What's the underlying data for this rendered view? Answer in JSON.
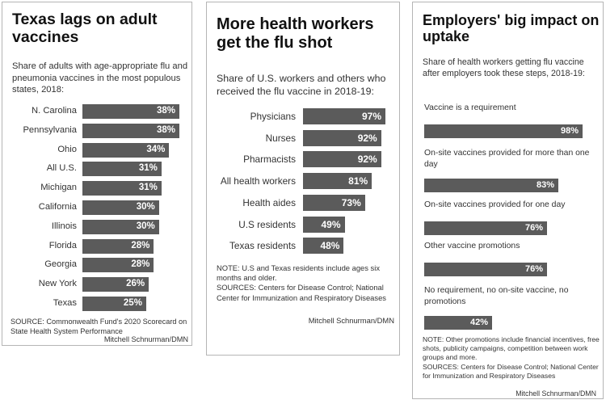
{
  "chart_data": [
    {
      "type": "bar",
      "title": "Texas lags on adult vaccines",
      "subtitle": "Share of adults with age-appropriate flu and pneumonia vaccines in the most populous states, 2018:",
      "categories": [
        "N. Carolina",
        "Pennsylvania",
        "Ohio",
        "All U.S.",
        "Michigan",
        "California",
        "Illinois",
        "Florida",
        "Georgia",
        "New York",
        "Texas"
      ],
      "values": [
        38,
        38,
        34,
        31,
        31,
        30,
        30,
        28,
        28,
        26,
        25
      ],
      "value_labels": [
        "38%",
        "38%",
        "34%",
        "31%",
        "31%",
        "30%",
        "30%",
        "28%",
        "28%",
        "26%",
        "25%"
      ],
      "source": "SOURCE: Commonwealth Fund's 2020 Scorecard on State Health System Performance",
      "credit": "Mitchell Schnurman/DMN"
    },
    {
      "type": "bar",
      "title": "More health workers get the flu shot",
      "subtitle": "Share of U.S. workers and others who received the flu vaccine in 2018-19:",
      "categories": [
        "Physicians",
        "Nurses",
        "Pharmacists",
        "All health workers",
        "Health aides",
        "U.S residents",
        "Texas residents"
      ],
      "values": [
        97,
        92,
        92,
        81,
        73,
        49,
        48
      ],
      "value_labels": [
        "97%",
        "92%",
        "92%",
        "81%",
        "73%",
        "49%",
        "48%"
      ],
      "note": "NOTE: U.S and Texas residents include ages six months and older.",
      "source": "SOURCES: Centers for Disease Control; National Center for Immunization and Respiratory Diseases",
      "credit": "Mitchell Schnurman/DMN"
    },
    {
      "type": "bar",
      "title": "Employers' big impact on uptake",
      "subtitle": "Share of health workers getting flu vaccine after employers took these steps, 2018-19:",
      "categories": [
        "Vaccine is a requirement",
        "On-site vaccines provided for more than one day",
        "On-site vaccines provided for one day",
        "Other vaccine promotions",
        "No requirement, no on-site vaccine, no promotions"
      ],
      "values": [
        98,
        83,
        76,
        76,
        42
      ],
      "value_labels": [
        "98%",
        "83%",
        "76%",
        "76%",
        "42%"
      ],
      "note": "NOTE: Other promotions include financial incentives, free shots, publicity campaigns, competition between work groups and more.",
      "source": "SOURCES: Centers for Disease Control; National Center for Immunization and Respiratory Diseases",
      "credit": "Mitchell Schnurman/DMN"
    }
  ]
}
